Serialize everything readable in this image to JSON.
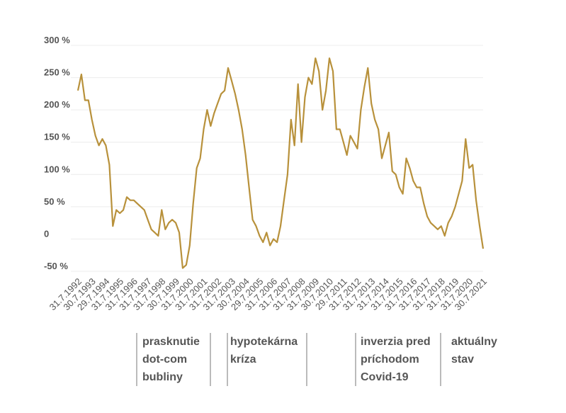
{
  "chart_data": {
    "type": "line",
    "categories": [
      "31.7.1992",
      null,
      null,
      null,
      "30.7.1993",
      null,
      null,
      null,
      "29.7.1994",
      null,
      null,
      null,
      "31.7.1995",
      null,
      null,
      null,
      "31.7.1996",
      null,
      null,
      null,
      "31.7.1997",
      null,
      null,
      null,
      "31.7.1998",
      null,
      null,
      null,
      "30.7.1999",
      null,
      null,
      null,
      "31.7.2000",
      null,
      null,
      null,
      "31.7.2001",
      null,
      null,
      null,
      "31.7.2002",
      null,
      null,
      null,
      "31.7.2003",
      null,
      null,
      null,
      "30.7.2004",
      null,
      null,
      null,
      "29.7.2005",
      null,
      null,
      null,
      "31.7.2006",
      null,
      null,
      null,
      "31.7.2007",
      null,
      null,
      null,
      "31.7.2008",
      null,
      null,
      null,
      "31.7.2009",
      null,
      null,
      null,
      "30.7.2010",
      null,
      null,
      null,
      "29.7.2011",
      null,
      null,
      null,
      "31.7.2012",
      null,
      null,
      null,
      "31.7.2013",
      null,
      null,
      null,
      "31.7.2014",
      null,
      null,
      null,
      "31.7.2015",
      null,
      null,
      null,
      "31.7.2016",
      null,
      null,
      null,
      "31.7.2017",
      null,
      null,
      null,
      "31.7.2018",
      null,
      null,
      null,
      "31.7.2019",
      null,
      null,
      null,
      "31.7.2020",
      null,
      null,
      null,
      "30.7.2021"
    ],
    "values": [
      230,
      255,
      215,
      215,
      185,
      160,
      145,
      155,
      145,
      115,
      20,
      45,
      40,
      45,
      65,
      60,
      60,
      55,
      50,
      45,
      30,
      15,
      10,
      5,
      45,
      15,
      25,
      30,
      25,
      10,
      -45,
      -40,
      -10,
      55,
      110,
      125,
      170,
      200,
      175,
      195,
      210,
      225,
      230,
      265,
      245,
      225,
      200,
      170,
      130,
      80,
      30,
      20,
      5,
      -5,
      10,
      -10,
      0,
      -5,
      20,
      60,
      100,
      185,
      145,
      240,
      150,
      220,
      250,
      240,
      280,
      260,
      200,
      230,
      280,
      260,
      170,
      170,
      150,
      130,
      160,
      150,
      140,
      200,
      235,
      265,
      210,
      185,
      170,
      125,
      145,
      165,
      105,
      100,
      80,
      70,
      125,
      110,
      90,
      80,
      80,
      55,
      35,
      25,
      20,
      15,
      20,
      5,
      25,
      35,
      50,
      70,
      90,
      155,
      110,
      115,
      60,
      20,
      -15
    ],
    "color": "#b8913b",
    "ylim": [
      -50,
      300
    ],
    "yticks": [
      {
        "value": -50,
        "label": "-50 %"
      },
      0,
      {
        "value": 50,
        "label": "50 %"
      },
      {
        "value": 100,
        "label": "100 %"
      },
      {
        "value": 150,
        "label": "150 %"
      },
      {
        "value": 200,
        "label": "200 %"
      },
      {
        "value": 250,
        "label": "250 %"
      },
      {
        "value": 300,
        "label": "300 %"
      }
    ],
    "grid": true,
    "annotations": [
      {
        "lines": [
          "prasknutie",
          "dot-com",
          "bubliny"
        ],
        "color": "#444444"
      },
      {
        "lines": [
          "hypotekárna",
          "kríza"
        ],
        "color": "#444444"
      },
      {
        "lines": [
          "inverzia pred",
          "príchodom",
          "Covid-19"
        ],
        "color": "#444444"
      },
      {
        "lines": [
          "aktuálny",
          "stav"
        ],
        "color": "#3fa9de"
      }
    ]
  }
}
